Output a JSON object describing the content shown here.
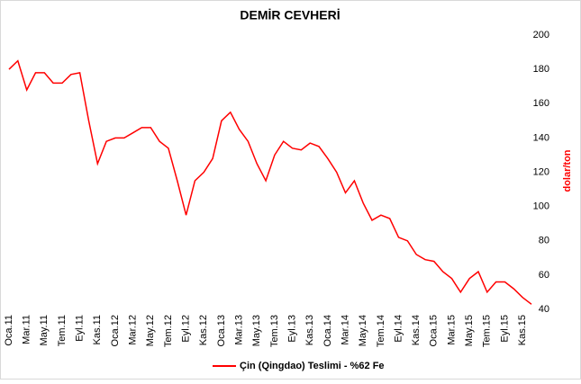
{
  "chart_data": {
    "type": "line",
    "title": "DEMİR CEVHERİ",
    "y_label": "dolar/ton",
    "categories": [
      "Oca.11",
      null,
      "Mar.11",
      null,
      "May.11",
      null,
      "Tem.11",
      null,
      "Eyl.11",
      null,
      "Kas.11",
      null,
      "Oca.12",
      null,
      "Mar.12",
      null,
      "May.12",
      null,
      "Tem.12",
      null,
      "Eyl.12",
      null,
      "Kas.12",
      null,
      "Oca.13",
      null,
      "Mar.13",
      null,
      "May.13",
      null,
      "Tem.13",
      null,
      "Eyl.13",
      null,
      "Kas.13",
      null,
      "Oca.14",
      null,
      "Mar.14",
      null,
      "May.14",
      null,
      "Tem.14",
      null,
      "Eyl.14",
      null,
      "Kas.14",
      null,
      "Oca.15",
      null,
      "Mar.15",
      null,
      "May.15",
      null,
      "Tem.15",
      null,
      "Eyl.15",
      null,
      "Kas.15",
      null
    ],
    "series": [
      {
        "name": "Çin (Qingdao) Teslimi - %62 Fe",
        "color": "#ff0000",
        "values": [
          180,
          185,
          168,
          178,
          178,
          172,
          172,
          177,
          178,
          150,
          125,
          138,
          140,
          140,
          143,
          146,
          146,
          138,
          134,
          115,
          95,
          115,
          120,
          128,
          150,
          155,
          145,
          138,
          125,
          115,
          130,
          138,
          134,
          133,
          137,
          135,
          128,
          120,
          108,
          115,
          102,
          92,
          95,
          93,
          82,
          80,
          72,
          69,
          68,
          62,
          58,
          50,
          58,
          62,
          50,
          56,
          56,
          52,
          47,
          43
        ]
      }
    ],
    "ylim": [
      40,
      200
    ],
    "yticks": [
      40,
      60,
      80,
      100,
      120,
      140,
      160,
      180,
      200
    ],
    "y_axis_side": "right",
    "grid": false
  }
}
